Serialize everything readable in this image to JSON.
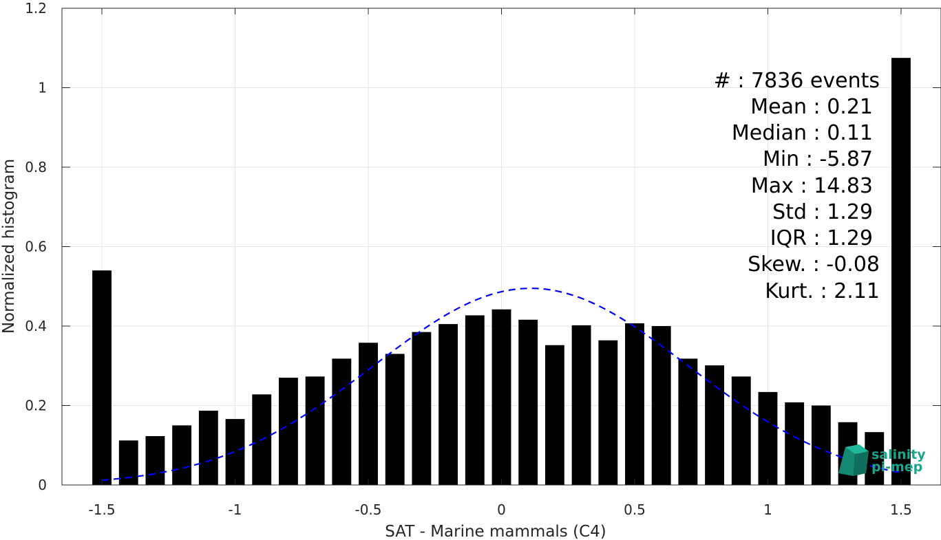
{
  "chart_data": {
    "type": "bar",
    "xlabel": "SAT - Marine mammals (C4)",
    "ylabel": "Normalized histogram",
    "xlim": [
      -1.65,
      1.65
    ],
    "ylim": [
      0,
      1.2
    ],
    "xticks": [
      -1.5,
      -1,
      -0.5,
      0,
      0.5,
      1,
      1.5
    ],
    "xtick_labels": [
      "-1.5",
      "-1",
      "-0.5",
      "0",
      "0.5",
      "1",
      "1.5"
    ],
    "yticks": [
      0,
      0.2,
      0.4,
      0.6,
      0.8,
      1,
      1.2
    ],
    "ytick_labels": [
      "0",
      "0.2",
      "0.4",
      "0.6",
      "0.8",
      "1",
      "1.2"
    ],
    "grid": true,
    "bar_color": "#000000",
    "bars": {
      "x": [
        -1.5,
        -1.4,
        -1.3,
        -1.2,
        -1.1,
        -1.0,
        -0.9,
        -0.8,
        -0.7,
        -0.6,
        -0.5,
        -0.4,
        -0.3,
        -0.2,
        -0.1,
        0.0,
        0.1,
        0.2,
        0.3,
        0.4,
        0.5,
        0.6,
        0.7,
        0.8,
        0.9,
        1.0,
        1.1,
        1.2,
        1.3,
        1.4,
        1.5
      ],
      "values": [
        0.54,
        0.112,
        0.123,
        0.15,
        0.187,
        0.166,
        0.228,
        0.27,
        0.273,
        0.318,
        0.358,
        0.33,
        0.385,
        0.405,
        0.427,
        0.442,
        0.416,
        0.352,
        0.402,
        0.364,
        0.407,
        0.4,
        0.318,
        0.301,
        0.273,
        0.234,
        0.208,
        0.2,
        0.158,
        0.133,
        1.075
      ]
    },
    "fit_curve": {
      "style": "dashed",
      "color": "#0000ff",
      "mean": 0.11,
      "std": 0.59,
      "peak": 0.495,
      "x_range": [
        -1.5,
        1.5
      ]
    },
    "stats": [
      {
        "label": "#  : 7836 events"
      },
      {
        "label": "Mean : 0.21"
      },
      {
        "label": "Median : 0.11"
      },
      {
        "label": "Min : -5.87"
      },
      {
        "label": "Max : 14.83"
      },
      {
        "label": "Std : 1.29"
      },
      {
        "label": "IQR : 1.29"
      },
      {
        "label": "Skew. : -0.08"
      },
      {
        "label": "Kurt. : 2.11"
      }
    ]
  },
  "logo": {
    "line1": "salinity",
    "line2": "pi-mep",
    "color": "#1aa58a"
  }
}
